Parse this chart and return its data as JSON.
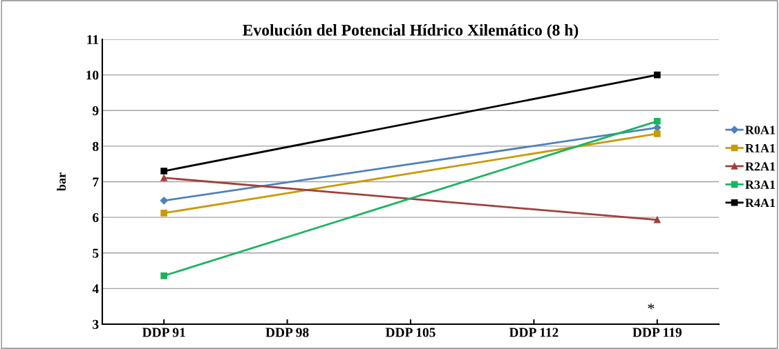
{
  "chart_data": {
    "type": "line",
    "title": "Evolución del Potencial Hídrico Xilemático (8 h)",
    "ylabel": "bar",
    "categories": [
      "DDP 91",
      "DDP 98",
      "DDP 105",
      "DDP 112",
      "DDP 119"
    ],
    "series": [
      {
        "name": "R0A1",
        "color": "#4f81bd",
        "marker": "diamond",
        "values": [
          6.47,
          null,
          null,
          null,
          8.52
        ]
      },
      {
        "name": "R1A1",
        "color": "#c99a06",
        "marker": "square",
        "values": [
          6.12,
          null,
          null,
          null,
          8.35
        ]
      },
      {
        "name": "R2A1",
        "color": "#a0403c",
        "marker": "triangle",
        "values": [
          7.11,
          null,
          null,
          null,
          5.93
        ]
      },
      {
        "name": "R3A1",
        "color": "#1ab460",
        "marker": "square",
        "values": [
          4.36,
          null,
          null,
          null,
          8.7
        ]
      },
      {
        "name": "R4A1",
        "color": "#000000",
        "marker": "square",
        "values": [
          7.3,
          null,
          null,
          null,
          10.0
        ]
      }
    ],
    "ylim": [
      3,
      11
    ],
    "yticks": [
      3,
      4,
      5,
      6,
      7,
      8,
      9,
      10,
      11
    ],
    "grid": "y",
    "legend": "right",
    "annotations": [
      "*"
    ]
  }
}
